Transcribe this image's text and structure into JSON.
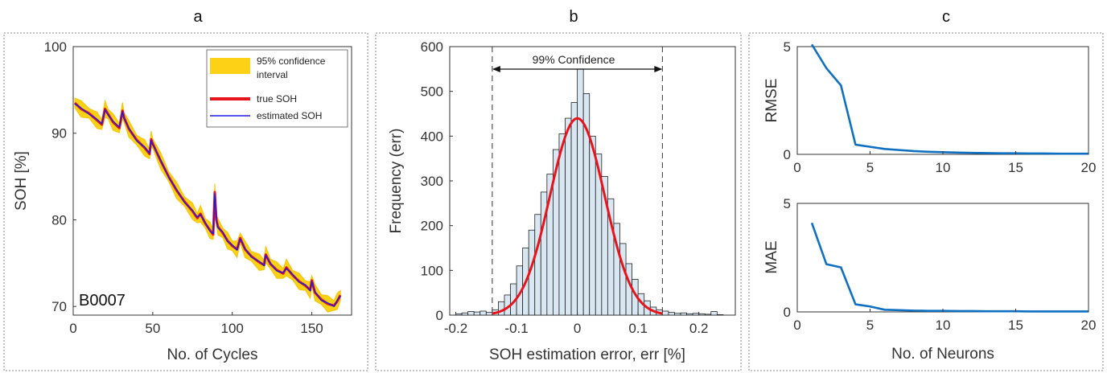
{
  "panel_letters": [
    "a",
    "b",
    "c"
  ],
  "chart_data": [
    {
      "type": "line",
      "panel": "a",
      "xlabel": "No. of Cycles",
      "ylabel": "SOH [%]",
      "xlim": [
        0,
        175
      ],
      "ylim": [
        69,
        100
      ],
      "xticks": [
        0,
        50,
        100,
        150
      ],
      "yticks": [
        70,
        80,
        90,
        100
      ],
      "annotation": "B0007",
      "legend": [
        "95% confidence interval",
        "true SOH",
        "estimated SOH"
      ],
      "legend_position": "top-right",
      "band_halfwidth": 0.7,
      "series": [
        {
          "name": "true SOH",
          "color": "#e8141c",
          "x": [
            1,
            5,
            10,
            15,
            18,
            20,
            22,
            25,
            29,
            31,
            32,
            35,
            40,
            45,
            48,
            49,
            50,
            55,
            60,
            65,
            70,
            75,
            78,
            80,
            83,
            86,
            88,
            89,
            90,
            91,
            94,
            97,
            100,
            103,
            105,
            108,
            112,
            117,
            120,
            121,
            124,
            128,
            132,
            134,
            138,
            142,
            146,
            149,
            150,
            152,
            156,
            160,
            164,
            166,
            168
          ],
          "y": [
            93.5,
            92.8,
            92.3,
            91.5,
            91.0,
            92.8,
            92.2,
            91.3,
            90.6,
            92.6,
            91.8,
            90.5,
            89.2,
            88.3,
            87.6,
            89.3,
            88.8,
            86.8,
            85.0,
            83.4,
            82.1,
            81.0,
            80.2,
            80.7,
            79.6,
            78.8,
            78.3,
            83.2,
            80.0,
            79.2,
            78.5,
            77.6,
            77.0,
            76.6,
            77.9,
            76.6,
            75.8,
            75.1,
            74.8,
            76.0,
            74.9,
            74.2,
            73.8,
            74.5,
            73.6,
            72.9,
            72.4,
            71.9,
            73.0,
            71.6,
            70.8,
            70.3,
            70.1,
            70.6,
            71.3
          ]
        },
        {
          "name": "estimated SOH",
          "color": "#1c1ce0",
          "x": [
            1,
            5,
            10,
            15,
            18,
            20,
            22,
            25,
            29,
            31,
            32,
            35,
            40,
            45,
            48,
            49,
            50,
            55,
            60,
            65,
            70,
            75,
            78,
            80,
            83,
            86,
            88,
            89,
            90,
            91,
            94,
            97,
            100,
            103,
            105,
            108,
            112,
            117,
            120,
            121,
            124,
            128,
            132,
            134,
            138,
            142,
            146,
            149,
            150,
            152,
            156,
            160,
            164,
            166,
            168
          ],
          "y": [
            93.4,
            92.9,
            92.2,
            91.6,
            91.1,
            92.7,
            92.1,
            91.4,
            90.7,
            92.5,
            91.7,
            90.6,
            89.1,
            88.4,
            87.7,
            89.2,
            88.7,
            86.9,
            84.9,
            83.5,
            82.0,
            81.1,
            80.3,
            80.6,
            79.7,
            78.7,
            78.4,
            83.0,
            80.1,
            79.1,
            78.6,
            77.5,
            77.1,
            76.5,
            77.8,
            76.7,
            75.7,
            75.2,
            74.7,
            75.9,
            75.0,
            74.1,
            73.9,
            74.4,
            73.7,
            72.8,
            72.5,
            71.8,
            72.9,
            71.7,
            70.7,
            70.4,
            70.0,
            70.7,
            71.2
          ]
        }
      ]
    },
    {
      "type": "bar",
      "panel": "b",
      "xlabel": "SOH estimation error, err [%]",
      "ylabel": "Frequency (err)",
      "xlim": [
        -0.21,
        0.26
      ],
      "ylim": [
        0,
        600
      ],
      "xticks": [
        -0.2,
        -0.1,
        0,
        0.1,
        0.2
      ],
      "yticks": [
        0,
        100,
        200,
        300,
        400,
        500,
        600
      ],
      "annotation": "99% Confidence",
      "confidence_bounds": [
        -0.14,
        0.14
      ],
      "bin_width": 0.01,
      "bin_centers": [
        -0.195,
        -0.185,
        -0.175,
        -0.165,
        -0.155,
        -0.145,
        -0.135,
        -0.125,
        -0.115,
        -0.105,
        -0.095,
        -0.085,
        -0.075,
        -0.065,
        -0.055,
        -0.045,
        -0.035,
        -0.025,
        -0.015,
        -0.005,
        0.005,
        0.015,
        0.025,
        0.035,
        0.045,
        0.055,
        0.065,
        0.075,
        0.085,
        0.095,
        0.105,
        0.115,
        0.125,
        0.135,
        0.145,
        0.155,
        0.165,
        0.175,
        0.185,
        0.195,
        0.205,
        0.215,
        0.225,
        0.235
      ],
      "values": [
        3,
        5,
        8,
        7,
        9,
        6,
        12,
        30,
        45,
        70,
        110,
        150,
        190,
        225,
        275,
        315,
        370,
        405,
        440,
        475,
        550,
        495,
        400,
        360,
        310,
        260,
        205,
        160,
        115,
        80,
        48,
        32,
        18,
        12,
        9,
        6,
        4,
        5,
        3,
        4,
        3,
        2,
        8,
        1
      ],
      "bar_color": "#d9e7f2",
      "fit_curve": {
        "color": "#e8141c",
        "mean": 0,
        "sigma": 0.045,
        "peak": 440
      }
    },
    {
      "type": "line",
      "panel": "c-top",
      "xlabel": "",
      "ylabel": "RMSE",
      "xlim": [
        0,
        20
      ],
      "ylim": [
        0,
        5
      ],
      "xticks": [
        0,
        5,
        10,
        15,
        20
      ],
      "yticks": [
        0,
        5
      ],
      "series": [
        {
          "color": "#0f6fc0",
          "x": [
            1,
            2,
            3,
            4,
            5,
            6,
            7,
            8,
            9,
            10,
            11,
            12,
            13,
            14,
            15,
            16,
            17,
            18,
            19,
            20
          ],
          "y": [
            5.1,
            4.0,
            3.2,
            0.45,
            0.35,
            0.25,
            0.2,
            0.15,
            0.12,
            0.1,
            0.08,
            0.07,
            0.06,
            0.05,
            0.05,
            0.04,
            0.04,
            0.03,
            0.03,
            0.03
          ]
        }
      ]
    },
    {
      "type": "line",
      "panel": "c-bottom",
      "xlabel": "No. of Neurons",
      "ylabel": "MAE",
      "xlim": [
        0,
        20
      ],
      "ylim": [
        0,
        5
      ],
      "xticks": [
        0,
        5,
        10,
        15,
        20
      ],
      "yticks": [
        0,
        5
      ],
      "series": [
        {
          "color": "#0f6fc0",
          "x": [
            1,
            2,
            3,
            4,
            5,
            6,
            7,
            8,
            9,
            10,
            11,
            12,
            13,
            14,
            15,
            16,
            17,
            18,
            19,
            20
          ],
          "y": [
            4.1,
            2.2,
            2.05,
            0.35,
            0.25,
            0.1,
            0.08,
            0.06,
            0.05,
            0.05,
            0.04,
            0.04,
            0.03,
            0.03,
            0.03,
            0.02,
            0.02,
            0.02,
            0.02,
            0.02
          ]
        }
      ]
    }
  ]
}
